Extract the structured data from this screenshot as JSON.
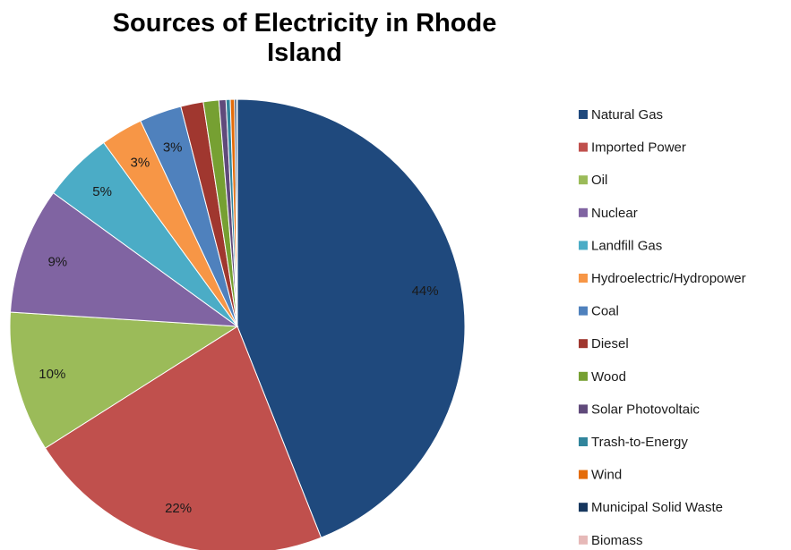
{
  "chart_data": {
    "type": "pie",
    "title": "Sources of Electricity in Rhode Island",
    "legend_placement": "right",
    "categories": [
      "Natural Gas",
      "Imported Power",
      "Oil",
      "Nuclear",
      "Landfill Gas",
      "Hydroelectric/Hydropower",
      "Coal",
      "Diesel",
      "Wood",
      "Solar Photovoltaic",
      "Trash-to-Energy",
      "Wind",
      "Municipal Solid Waste",
      "Biomass"
    ],
    "values": [
      44,
      22,
      10,
      9,
      5,
      3,
      3,
      1.6,
      1.1,
      0.5,
      0.3,
      0.3,
      0.15,
      0.05
    ],
    "data_labels": [
      "44%",
      "22%",
      "10%",
      "9%",
      "5%",
      "3%",
      "3%",
      "",
      "",
      "",
      "",
      "",
      "",
      ""
    ],
    "colors": [
      "#1F497D",
      "#C0504D",
      "#9BBB59",
      "#8064A2",
      "#4BACC6",
      "#F79646",
      "#4F81BD",
      "#A0372F",
      "#76A032",
      "#604A7B",
      "#31859C",
      "#E46C0A",
      "#17375E",
      "#E6B9B8"
    ]
  }
}
